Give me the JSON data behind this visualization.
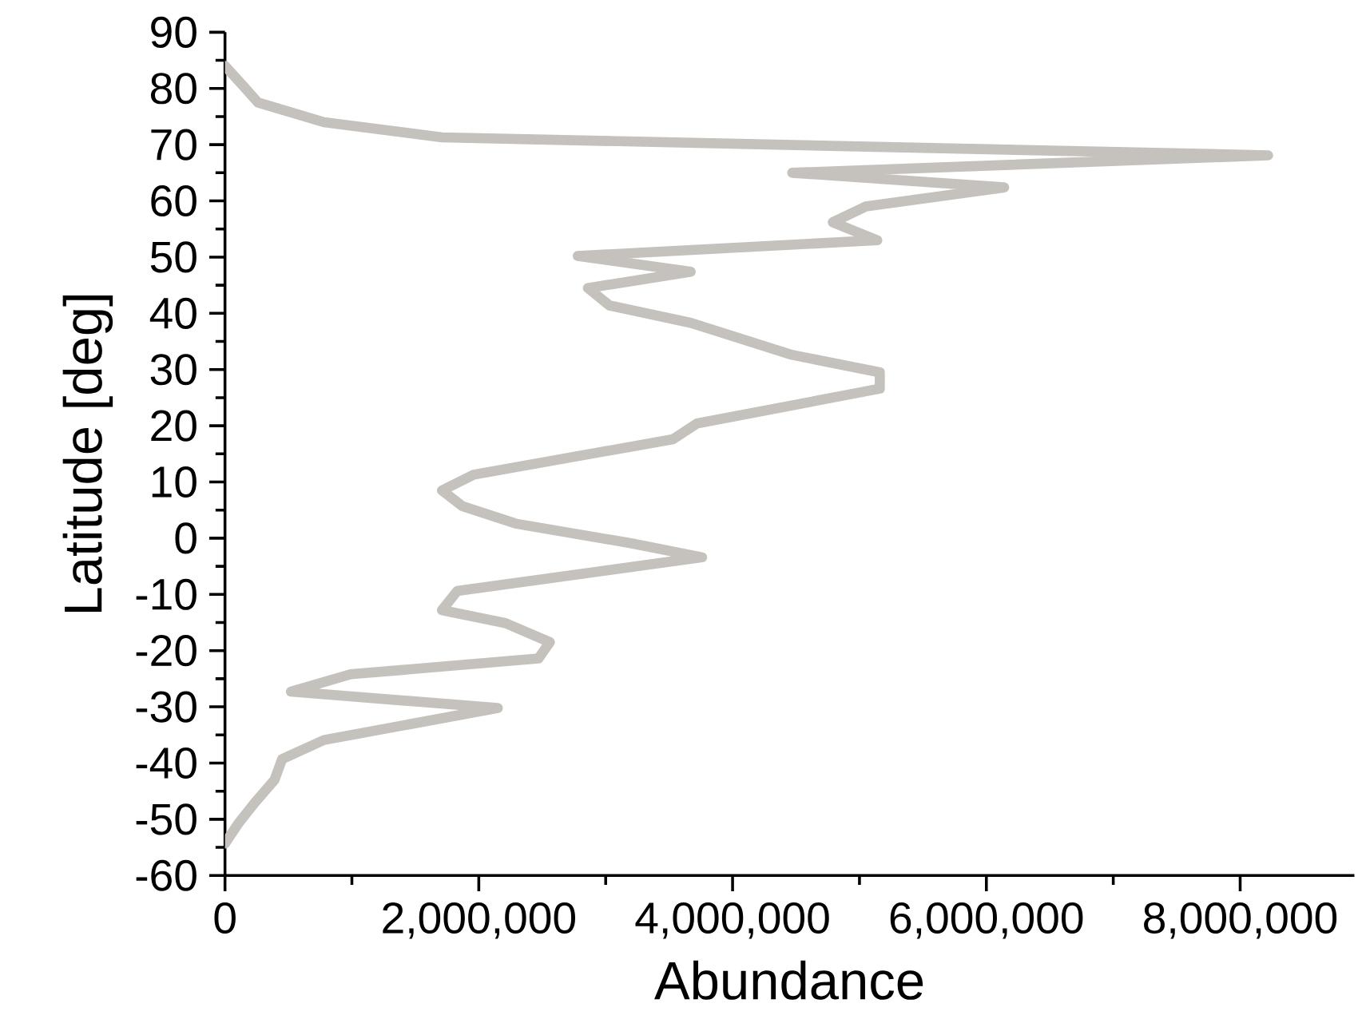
{
  "chart_data": {
    "type": "line",
    "xlabel": "Abundance",
    "ylabel": "Latitude [deg]",
    "xlim": [
      0,
      8900000
    ],
    "ylim": [
      -60,
      90
    ],
    "xticks": [
      0,
      {
        "value": 2000000,
        "label": "2,000,000"
      },
      {
        "value": 4000000,
        "label": "4,000,000"
      },
      {
        "value": 6000000,
        "label": "6,000,000"
      },
      {
        "value": 8000000,
        "label": "8,000,000"
      }
    ],
    "yticks": [
      -60,
      -50,
      -40,
      -30,
      -20,
      -10,
      0,
      10,
      20,
      30,
      40,
      50,
      60,
      70,
      80,
      90
    ],
    "grid": false,
    "marker": "none",
    "line_style": "solid",
    "series": [
      {
        "color": "#c5c1bd",
        "x": [
          0,
          150000,
          260000,
          780000,
          1710000,
          8220000,
          4470000,
          6140000,
          5050000,
          4790000,
          5140000,
          2780000,
          3670000,
          2860000,
          3030000,
          3670000,
          4470000,
          5160000,
          5160000,
          3720000,
          3530000,
          1960000,
          1710000,
          1870000,
          2290000,
          3200000,
          3760000,
          1830000,
          1710000,
          2210000,
          2560000,
          2470000,
          990000,
          520000,
          2150000,
          780000,
          450000,
          390000,
          240000,
          110000,
          0
        ],
        "values": [
          84,
          80.3,
          77.5,
          74,
          71.3,
          68.1,
          65,
          62.4,
          59,
          56.2,
          53,
          50.2,
          47.4,
          44.5,
          41.4,
          38.3,
          32.6,
          29.5,
          26.6,
          20.4,
          17.6,
          11.3,
          8.5,
          5.7,
          2.6,
          -0.9,
          -3.4,
          -9.4,
          -12.8,
          -15.1,
          -18.5,
          -21.4,
          -24.2,
          -27.3,
          -30.2,
          -35.9,
          -39.3,
          -43,
          -46.9,
          -50.6,
          -54.3
        ]
      }
    ]
  }
}
